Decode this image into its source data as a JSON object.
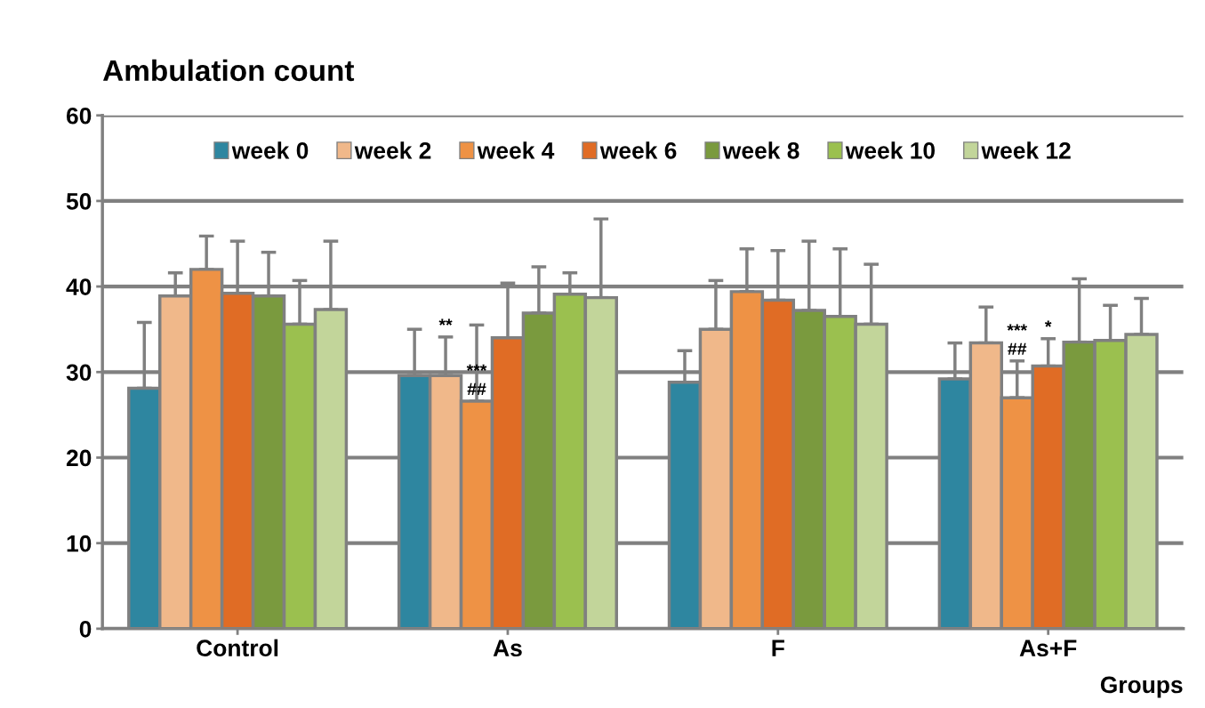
{
  "chart_data": {
    "type": "bar",
    "title": "Ambulation count",
    "xlabel": "Groups",
    "categories": [
      "Control",
      "As",
      "F",
      "As+F"
    ],
    "series": [
      {
        "name": "week 0",
        "color": "#2e86a0",
        "values": [
          28.1,
          29.6,
          28.8,
          29.2
        ],
        "errors": [
          [
            28.1,
            35.8
          ],
          [
            29.6,
            35.0
          ],
          [
            28.8,
            32.5
          ],
          [
            29.2,
            33.4
          ]
        ]
      },
      {
        "name": "week 2",
        "color": "#f0b88a",
        "values": [
          38.9,
          29.6,
          35.0,
          33.4
        ],
        "errors": [
          [
            38.9,
            41.6
          ],
          [
            29.6,
            34.1
          ],
          [
            35.0,
            40.7
          ],
          [
            33.4,
            37.6
          ]
        ],
        "value_labels": [
          null,
          "**",
          null,
          null
        ]
      },
      {
        "name": "week 4",
        "color": "#ee9245",
        "values": [
          42.0,
          26.6,
          39.4,
          27.0
        ],
        "errors": [
          [
            42.0,
            45.9
          ],
          [
            26.6,
            35.5
          ],
          [
            39.4,
            44.4
          ],
          [
            27.0,
            31.3
          ]
        ],
        "value_labels": [
          null,
          "***\n##",
          null,
          "***\n##"
        ]
      },
      {
        "name": "week 6",
        "color": "#e06c25",
        "values": [
          39.2,
          34.0,
          38.4,
          30.7
        ],
        "errors": [
          [
            39.2,
            45.3
          ],
          [
            34.0,
            40.4
          ],
          [
            38.4,
            44.2
          ],
          [
            30.7,
            33.9
          ]
        ],
        "value_labels": [
          null,
          null,
          null,
          "*"
        ]
      },
      {
        "name": "week 8",
        "color": "#7a9a3e",
        "values": [
          38.9,
          36.9,
          37.2,
          33.5
        ],
        "errors": [
          [
            38.9,
            44.0
          ],
          [
            36.9,
            42.3
          ],
          [
            37.2,
            45.3
          ],
          [
            33.5,
            40.9
          ]
        ]
      },
      {
        "name": "week 10",
        "color": "#9bc04f",
        "values": [
          35.6,
          39.1,
          36.5,
          33.7
        ],
        "errors": [
          [
            35.6,
            40.7
          ],
          [
            39.1,
            41.6
          ],
          [
            36.5,
            44.4
          ],
          [
            33.7,
            37.8
          ]
        ]
      },
      {
        "name": "week 12",
        "color": "#c2d59a",
        "values": [
          37.3,
          38.7,
          35.6,
          34.4
        ],
        "errors": [
          [
            37.3,
            45.3
          ],
          [
            38.7,
            47.9
          ],
          [
            35.6,
            42.6
          ],
          [
            34.4,
            38.6
          ]
        ]
      }
    ],
    "ylim": [
      0,
      60
    ],
    "yticks": [
      0,
      10,
      20,
      30,
      40,
      50,
      60
    ],
    "grid": "y",
    "legend": "top"
  }
}
